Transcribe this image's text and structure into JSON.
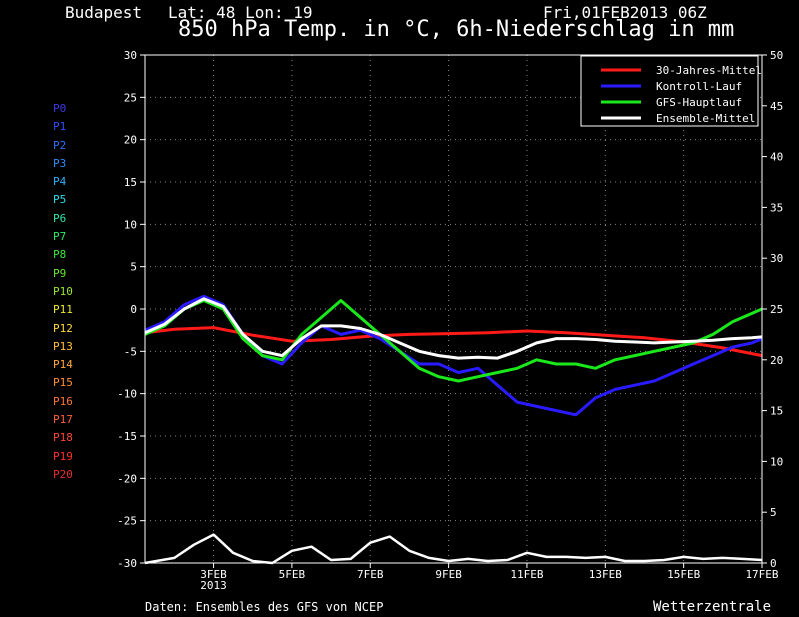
{
  "header": {
    "location": "Budapest",
    "coords": "Lat: 48 Lon: 19",
    "datetime": "Fri,01FEB2013 06Z"
  },
  "title": "850 hPa Temp. in °C, 6h-Niederschlag in mm",
  "footer": {
    "source": "Daten: Ensembles des GFS von NCEP",
    "brand": "Wetterzentrale"
  },
  "members": [
    {
      "label": "P0",
      "color": "#3a3ae8"
    },
    {
      "label": "P1",
      "color": "#2f4fff"
    },
    {
      "label": "P2",
      "color": "#2f6dff"
    },
    {
      "label": "P3",
      "color": "#2f8dff"
    },
    {
      "label": "P4",
      "color": "#2fb2ff"
    },
    {
      "label": "P5",
      "color": "#2fd9e8"
    },
    {
      "label": "P6",
      "color": "#2fe8a6"
    },
    {
      "label": "P7",
      "color": "#2fe86a"
    },
    {
      "label": "P8",
      "color": "#3ae83a"
    },
    {
      "label": "P9",
      "color": "#6ae82f"
    },
    {
      "label": "P10",
      "color": "#9ae82f"
    },
    {
      "label": "P11",
      "color": "#e8e82f"
    },
    {
      "label": "P12",
      "color": "#ffd83a"
    },
    {
      "label": "P13",
      "color": "#ffc03a"
    },
    {
      "label": "P14",
      "color": "#ffa83a"
    },
    {
      "label": "P15",
      "color": "#ff8f3a"
    },
    {
      "label": "P16",
      "color": "#ff763a"
    },
    {
      "label": "P17",
      "color": "#ff5e3a"
    },
    {
      "label": "P18",
      "color": "#ff463a"
    },
    {
      "label": "P19",
      "color": "#ff2f2f"
    },
    {
      "label": "P20",
      "color": "#e82f2f"
    }
  ],
  "chart_data": {
    "type": "line",
    "title": "850 hPa Temp. in °C, 6h-Niederschlag in mm",
    "x_ticks": [
      {
        "label": "3FEB",
        "sub": "2013",
        "day": 3
      },
      {
        "label": "5FEB",
        "day": 5
      },
      {
        "label": "7FEB",
        "day": 7
      },
      {
        "label": "9FEB",
        "day": 9
      },
      {
        "label": "11FEB",
        "day": 11
      },
      {
        "label": "13FEB",
        "day": 13
      },
      {
        "label": "15FEB",
        "day": 15
      },
      {
        "label": "17FEB",
        "day": 17
      }
    ],
    "xlim": [
      1.25,
      17
    ],
    "ylim_left": [
      -30,
      30
    ],
    "ylim_right": [
      0,
      50
    ],
    "y_ticks_left": [
      30,
      25,
      20,
      15,
      10,
      5,
      0,
      -5,
      -10,
      -15,
      -20,
      -25,
      -30
    ],
    "y_ticks_right": [
      50,
      45,
      40,
      35,
      30,
      25,
      20,
      15,
      10,
      5,
      0
    ],
    "grid": true,
    "legend_position": "top-right",
    "legend": [
      {
        "label": "30-Jahres-Mittel",
        "color": "#ff1a1a"
      },
      {
        "label": "Kontroll-Lauf",
        "color": "#2a1aff"
      },
      {
        "label": "GFS-Hauptlauf",
        "color": "#1ae81a"
      },
      {
        "label": "Ensemble-Mittel",
        "color": "#ffffff"
      }
    ],
    "series": [
      {
        "name": "30-Jahres-Mittel",
        "axis": "left",
        "color": "#ff1a1a",
        "x": [
          1.25,
          2,
          3,
          4,
          5,
          6,
          7,
          8,
          9,
          10,
          11,
          12,
          13,
          14,
          15,
          16,
          17
        ],
        "y": [
          -2.8,
          -2.4,
          -2.2,
          -3.1,
          -3.8,
          -3.6,
          -3.2,
          -3.0,
          -2.9,
          -2.8,
          -2.6,
          -2.8,
          -3.1,
          -3.4,
          -3.9,
          -4.6,
          -5.5
        ]
      },
      {
        "name": "Kontroll-Lauf",
        "axis": "left",
        "color": "#2a1aff",
        "x": [
          1.25,
          1.75,
          2.25,
          2.75,
          3.25,
          3.75,
          4.25,
          4.75,
          5.25,
          5.75,
          6.25,
          6.75,
          7.25,
          7.75,
          8.25,
          8.75,
          9.25,
          9.75,
          10.25,
          10.75,
          11.25,
          11.75,
          12.25,
          12.75,
          13.25,
          13.75,
          14.25,
          14.75,
          15.25,
          15.75,
          16.25,
          16.75,
          17
        ],
        "y": [
          -2.5,
          -1.5,
          0.5,
          1.5,
          0.5,
          -3.0,
          -5.5,
          -6.5,
          -4.0,
          -2.0,
          -3.0,
          -2.5,
          -3.5,
          -5.0,
          -6.5,
          -6.5,
          -7.5,
          -7.0,
          -9.0,
          -11.0,
          -11.5,
          -12.0,
          -12.5,
          -10.5,
          -9.5,
          -9.0,
          -8.5,
          -7.5,
          -6.5,
          -5.5,
          -4.5,
          -4.0,
          -3.5
        ]
      },
      {
        "name": "GFS-Hauptlauf",
        "axis": "left",
        "color": "#1ae81a",
        "x": [
          1.25,
          1.75,
          2.25,
          2.75,
          3.25,
          3.75,
          4.25,
          4.75,
          5.25,
          5.75,
          6.25,
          6.75,
          7.25,
          7.75,
          8.25,
          8.75,
          9.25,
          9.75,
          10.25,
          10.75,
          11.25,
          11.75,
          12.25,
          12.75,
          13.25,
          13.75,
          14.25,
          14.75,
          15.25,
          15.75,
          16.25,
          16.75,
          17
        ],
        "y": [
          -3.0,
          -2.0,
          0.0,
          1.0,
          0.0,
          -3.5,
          -5.5,
          -6.0,
          -3.0,
          -1.0,
          1.0,
          -1.0,
          -3.0,
          -5.0,
          -7.0,
          -8.0,
          -8.5,
          -8.0,
          -7.5,
          -7.0,
          -6.0,
          -6.5,
          -6.5,
          -7.0,
          -6.0,
          -5.5,
          -5.0,
          -4.5,
          -4.0,
          -3.0,
          -1.5,
          -0.5,
          0.0
        ]
      },
      {
        "name": "Ensemble-Mittel",
        "axis": "left",
        "color": "#ffffff",
        "x": [
          1.25,
          1.75,
          2.25,
          2.75,
          3.25,
          3.75,
          4.25,
          4.75,
          5.25,
          5.75,
          6.25,
          6.75,
          7.25,
          7.75,
          8.25,
          8.75,
          9.25,
          9.75,
          10.25,
          10.75,
          11.25,
          11.75,
          12.25,
          12.75,
          13.25,
          13.75,
          14.25,
          14.75,
          15.25,
          15.75,
          16.25,
          16.75,
          17
        ],
        "y": [
          -2.8,
          -1.8,
          0.0,
          1.2,
          0.3,
          -3.0,
          -5.0,
          -5.5,
          -3.5,
          -2.0,
          -2.0,
          -2.3,
          -3.0,
          -4.0,
          -5.0,
          -5.5,
          -5.8,
          -5.7,
          -5.8,
          -5.0,
          -4.0,
          -3.5,
          -3.5,
          -3.6,
          -3.8,
          -3.9,
          -4.0,
          -3.9,
          -3.8,
          -3.7,
          -3.5,
          -3.4,
          -3.3
        ]
      },
      {
        "name": "Ensemble-Mittel Niederschlag",
        "axis": "right",
        "color": "#ffffff",
        "x": [
          1.25,
          2,
          2.5,
          3,
          3.5,
          4,
          4.5,
          5,
          5.5,
          6,
          6.5,
          7,
          7.5,
          8,
          8.5,
          9,
          9.5,
          10,
          10.5,
          11,
          11.5,
          12,
          12.5,
          13,
          13.5,
          14,
          14.5,
          15,
          15.5,
          16,
          16.5,
          17
        ],
        "y": [
          0,
          0.5,
          1.8,
          2.8,
          1.0,
          0.2,
          0.0,
          1.2,
          1.6,
          0.3,
          0.4,
          2.0,
          2.6,
          1.2,
          0.5,
          0.2,
          0.4,
          0.2,
          0.3,
          1.0,
          0.6,
          0.6,
          0.5,
          0.6,
          0.2,
          0.2,
          0.3,
          0.6,
          0.4,
          0.5,
          0.4,
          0.3
        ]
      }
    ]
  }
}
